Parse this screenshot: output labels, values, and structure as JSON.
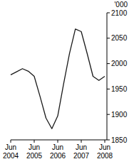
{
  "chart_data": {
    "type": "line",
    "y_label": "'000",
    "categories": [
      "Jun 2004",
      null,
      null,
      null,
      "Jun 2005",
      null,
      null,
      null,
      "Jun 2006",
      null,
      null,
      null,
      "Jun 2007",
      null,
      null,
      null,
      "Jun 2008"
    ],
    "values": [
      1978,
      1984,
      1990,
      1985,
      1975,
      1935,
      1893,
      1872,
      1897,
      1960,
      2020,
      2068,
      2063,
      2020,
      1975,
      1967,
      1975
    ],
    "color": "#1a1a1a",
    "ylim": [
      1850,
      2100
    ],
    "yticks": [
      1850,
      1900,
      1950,
      2000,
      2050,
      2100
    ],
    "grid": false
  }
}
